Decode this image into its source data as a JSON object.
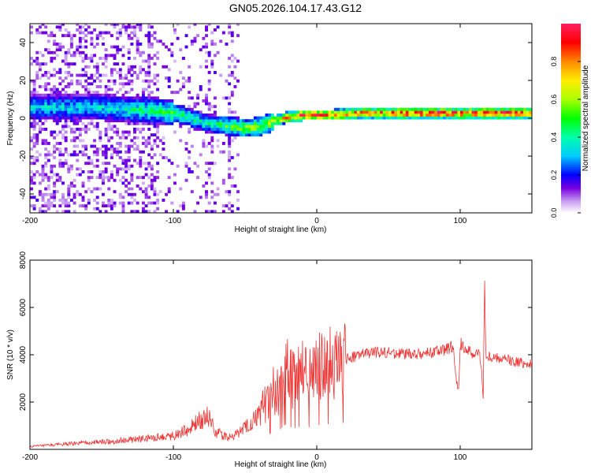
{
  "figure_title": "GN05.2026.104.17.43.G12",
  "colors": {
    "snr_line": "#ee3333",
    "axis": "#000000"
  },
  "chart_data": [
    {
      "type": "heatmap",
      "title": "GN05.2026.104.17.43.G12",
      "xlabel": "Height of straight line (km)",
      "ylabel": "Frequency (Hz)",
      "xlim": [
        -200,
        150
      ],
      "ylim": [
        -50,
        50
      ],
      "x_ticks": [
        -200,
        -100,
        0,
        100
      ],
      "y_ticks": [
        -40,
        -20,
        0,
        20,
        40
      ],
      "colorbar": {
        "label": "Normalized spectral amplitude",
        "range": [
          0,
          1
        ],
        "ticks": [
          0.0,
          0.2,
          0.4,
          0.6,
          0.8
        ]
      },
      "ridge_track": {
        "x_km": [
          -150,
          -130,
          -110,
          -100,
          -90,
          -80,
          -70,
          -60,
          -50,
          -40,
          -30,
          -20,
          -10,
          0,
          10,
          30,
          50,
          70,
          90,
          110,
          130,
          150
        ],
        "freq_hz": [
          5,
          4,
          3,
          2,
          0,
          -3,
          -4,
          -5,
          -6,
          -5,
          -2,
          0,
          1,
          1,
          1,
          2,
          2,
          2,
          2,
          2,
          2,
          2
        ],
        "amplitude": [
          0.35,
          0.4,
          0.45,
          0.5,
          0.45,
          0.4,
          0.45,
          0.55,
          0.6,
          0.6,
          0.65,
          0.8,
          0.9,
          0.95,
          0.85,
          0.85,
          0.9,
          0.95,
          0.9,
          0.9,
          0.95,
          0.85
        ]
      }
    },
    {
      "type": "line",
      "xlabel": "Height of straight line (km)",
      "ylabel": "SNR (10 * v/v)",
      "xlim": [
        -200,
        150
      ],
      "ylim": [
        0,
        8000
      ],
      "x_ticks": [
        -200,
        -100,
        0,
        100
      ],
      "y_ticks": [
        2000,
        4000,
        6000,
        8000
      ],
      "series": [
        {
          "name": "SNR",
          "x": [
            -200,
            -180,
            -160,
            -140,
            -120,
            -100,
            -90,
            -80,
            -75,
            -70,
            -60,
            -50,
            -40,
            -35,
            -30,
            -28,
            -25,
            -22,
            -20,
            -15,
            -10,
            -5,
            0,
            5,
            10,
            15,
            20,
            25,
            30,
            40,
            50,
            60,
            70,
            80,
            90,
            95,
            97,
            99,
            100,
            105,
            110,
            113,
            115,
            116,
            117,
            118,
            120,
            130,
            140,
            150
          ],
          "y": [
            120,
            200,
            280,
            350,
            450,
            600,
            800,
            1300,
            1400,
            700,
            500,
            900,
            1500,
            2000,
            2500,
            2300,
            2900,
            3500,
            3200,
            3000,
            3300,
            3100,
            3400,
            3500,
            3600,
            3600,
            3800,
            3900,
            4000,
            4100,
            4100,
            4050,
            4000,
            4100,
            4200,
            4400,
            3000,
            2400,
            4500,
            4200,
            4000,
            4100,
            3500,
            1800,
            7200,
            3800,
            3900,
            3800,
            3700,
            3600
          ]
        }
      ]
    }
  ]
}
